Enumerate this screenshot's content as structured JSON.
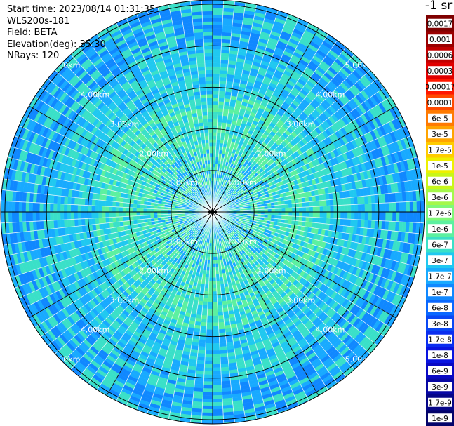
{
  "header": {
    "start_time": "Start time: 2023/08/14 01:31:35",
    "instrument": "WLS200s-181",
    "field": "Field: BETA",
    "elevation": "Elevation(deg): 35.30",
    "nrays": "NRays: 120"
  },
  "colorbar": {
    "title": "-1 sr",
    "labels": [
      "0.0017",
      "0.001",
      "0.0006",
      "0.0003",
      "0.00017",
      "0.0001",
      "6e-5",
      "3e-5",
      "1.7e-5",
      "1e-5",
      "6e-6",
      "3e-6",
      "1.7e-6",
      "1e-6",
      "6e-7",
      "3e-7",
      "1.7e-7",
      "1e-7",
      "6e-8",
      "3e-8",
      "1.7e-8",
      "1e-8",
      "6e-9",
      "3e-9",
      "1.7e-9",
      "1e-9"
    ],
    "colors": [
      "#7f0000",
      "#9a0000",
      "#c00000",
      "#e00000",
      "#ff1800",
      "#ff4a00",
      "#ff7a00",
      "#ffa400",
      "#ffcc00",
      "#eef000",
      "#c8f61a",
      "#a4f84a",
      "#80f878",
      "#5cf0a0",
      "#3ae0c8",
      "#20c8f0",
      "#18aaff",
      "#1088ff",
      "#0a68ff",
      "#0a48f4",
      "#0a2ef0",
      "#0a14e0",
      "#0a0ac4",
      "#0808a4",
      "#060688",
      "#04046a"
    ]
  },
  "chart_data": {
    "type": "heatmap",
    "subtype": "polar-ppi",
    "n_rays": 120,
    "range_rings_km": [
      1,
      2,
      3,
      4,
      5
    ],
    "range_labels": [
      "1.00km",
      "2.00km",
      "3.00km",
      "4.00km",
      "5.00km"
    ],
    "max_range_km": 5.1,
    "azimuth_spokes_deg": [
      0,
      30,
      60,
      90,
      120,
      150,
      180,
      210,
      240,
      270,
      300,
      330
    ],
    "field": "BETA",
    "elevation_deg": 35.3,
    "range_bands": [
      {
        "range_km": [
          0.0,
          0.7
        ],
        "dominant_colors": [
          "#18aaff",
          "#3ae0c8"
        ]
      },
      {
        "range_km": [
          0.7,
          1.5
        ],
        "dominant_colors": [
          "#3ae0c8",
          "#5cf0a0",
          "#18aaff"
        ]
      },
      {
        "range_km": [
          1.5,
          2.8
        ],
        "dominant_colors": [
          "#3ae0c8",
          "#20c8f0",
          "#5cf0a0"
        ]
      },
      {
        "range_km": [
          2.8,
          4.0
        ],
        "dominant_colors": [
          "#20c8f0",
          "#18aaff",
          "#3ae0c8"
        ]
      },
      {
        "range_km": [
          4.0,
          5.1
        ],
        "dominant_colors": [
          "#18aaff",
          "#1088ff",
          "#3ae0c8"
        ]
      }
    ]
  }
}
